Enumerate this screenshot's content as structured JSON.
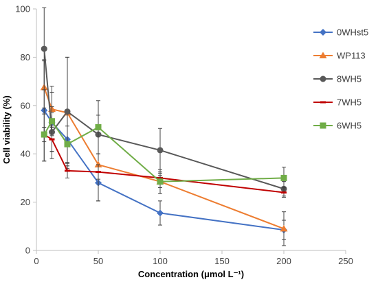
{
  "chart_data": {
    "type": "line",
    "title": "",
    "xlabel": "Concentration (μmol L⁻¹)",
    "ylabel": "Cell viability (%)",
    "xlim": [
      0,
      250
    ],
    "ylim": [
      0,
      100
    ],
    "xticks": [
      0,
      50,
      100,
      150,
      200,
      250
    ],
    "yticks": [
      0,
      20,
      40,
      60,
      80,
      100
    ],
    "grid": false,
    "legend_position": "right",
    "error_bars": true,
    "series": [
      {
        "name": "0WHst5",
        "color": "#4472C4",
        "marker": "diamond",
        "x": [
          6.25,
          12.5,
          25,
          50,
          100,
          200
        ],
        "y": [
          58,
          53,
          46,
          28,
          15.5,
          8.5
        ],
        "err": [
          21,
          15,
          11,
          7.5,
          5,
          4
        ]
      },
      {
        "name": "WP113",
        "color": "#ED7D31",
        "marker": "triangle",
        "x": [
          6.25,
          12.5,
          25,
          50,
          100,
          200
        ],
        "y": [
          67.5,
          58.5,
          57,
          35.5,
          28.5,
          9
        ],
        "err": [
          11,
          7,
          23,
          15,
          5,
          7
        ]
      },
      {
        "name": "8WH5",
        "color": "#595959",
        "marker": "circle",
        "x": [
          6.25,
          12.5,
          25,
          50,
          100,
          200
        ],
        "y": [
          83.5,
          49,
          57.5,
          48,
          41.5,
          25.5
        ],
        "err": [
          17,
          8,
          22.5,
          8,
          9,
          3
        ]
      },
      {
        "name": "7WH5",
        "color": "#C00000",
        "marker": "dash",
        "x": [
          6.25,
          12.5,
          25,
          50,
          100,
          200
        ],
        "y": [
          48,
          46,
          33,
          32.5,
          30,
          24
        ],
        "err": [
          3,
          5,
          3,
          3,
          2,
          2
        ]
      },
      {
        "name": "6WH5",
        "color": "#70AD47",
        "marker": "square",
        "x": [
          6.25,
          12.5,
          25,
          50,
          100,
          200
        ],
        "y": [
          48,
          53.5,
          44,
          51,
          28.5,
          30
        ],
        "err": [
          11,
          6,
          7.5,
          11,
          2.5,
          4.5
        ]
      }
    ]
  }
}
